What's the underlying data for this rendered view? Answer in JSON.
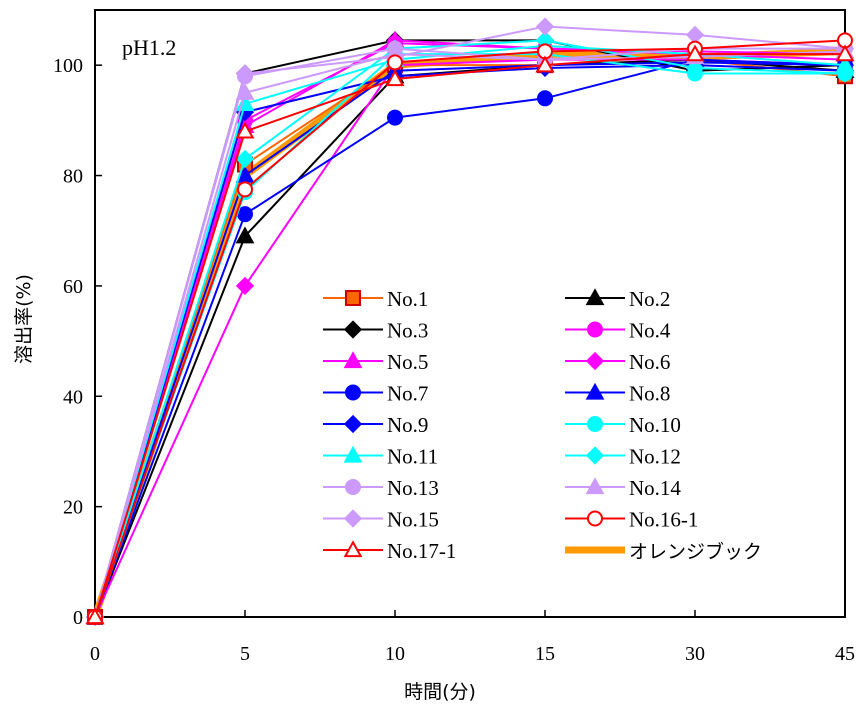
{
  "chart_data": {
    "type": "line",
    "annotation": "pH1.2",
    "xlabel": "時間(分)",
    "ylabel": "溶出率(%)",
    "categories": [
      "0",
      "5",
      "10",
      "15",
      "30",
      "45"
    ],
    "ylim": [
      0,
      110
    ],
    "yticks": [
      "0",
      "20",
      "40",
      "60",
      "80",
      "100"
    ],
    "grid": false,
    "legend_position": "center",
    "series": [
      {
        "name": "No.1",
        "color": "#FF6600",
        "marker": "square",
        "marker_fill": "#FF6600",
        "marker_edge": "#CC0000",
        "values": [
          0,
          82,
          100,
          100,
          101,
          98
        ]
      },
      {
        "name": "No.2",
        "color": "#000000",
        "marker": "triangle",
        "marker_fill": "#000000",
        "marker_edge": "#000000",
        "values": [
          0,
          69,
          98,
          100,
          101,
          99
        ]
      },
      {
        "name": "No.3",
        "color": "#000000",
        "marker": "diamond",
        "marker_fill": "#000000",
        "marker_edge": "#000000",
        "values": [
          0,
          98.5,
          104.5,
          104.5,
          99,
          100
        ]
      },
      {
        "name": "No.4",
        "color": "#FF00FF",
        "marker": "circle",
        "marker_fill": "#FF00FF",
        "marker_edge": "#FF00FF",
        "values": [
          0,
          90,
          104,
          103,
          102,
          101
        ]
      },
      {
        "name": "No.5",
        "color": "#FF00FF",
        "marker": "triangle",
        "marker_fill": "#FF00FF",
        "marker_edge": "#FF00FF",
        "values": [
          0,
          89,
          104.5,
          103,
          102.5,
          102
        ]
      },
      {
        "name": "No.6",
        "color": "#FF00FF",
        "marker": "diamond",
        "marker_fill": "#FF00FF",
        "marker_edge": "#FF00FF",
        "values": [
          0,
          60,
          100,
          101,
          101,
          100
        ]
      },
      {
        "name": "No.7",
        "color": "#0000FF",
        "marker": "circle",
        "marker_fill": "#0000FF",
        "marker_edge": "#0000FF",
        "values": [
          0,
          73,
          90.5,
          94,
          101,
          100
        ]
      },
      {
        "name": "No.8",
        "color": "#0000FF",
        "marker": "triangle",
        "marker_fill": "#0000FF",
        "marker_edge": "#0000FF",
        "values": [
          0,
          80,
          99,
          100,
          100.5,
          100
        ]
      },
      {
        "name": "No.9",
        "color": "#0000FF",
        "marker": "diamond",
        "marker_fill": "#0000FF",
        "marker_edge": "#0000FF",
        "values": [
          0,
          91.5,
          98,
          99.5,
          100,
          99
        ]
      },
      {
        "name": "No.10",
        "color": "#00FFFF",
        "marker": "circle",
        "marker_fill": "#00FFFF",
        "marker_edge": "#00FFFF",
        "values": [
          0,
          77,
          102,
          102,
          98.5,
          98.5
        ]
      },
      {
        "name": "No.11",
        "color": "#00FFFF",
        "marker": "triangle",
        "marker_fill": "#00FFFF",
        "marker_edge": "#00FFFF",
        "values": [
          0,
          93,
          101,
          103.5,
          102,
          100
        ]
      },
      {
        "name": "No.12",
        "color": "#00FFFF",
        "marker": "diamond",
        "marker_fill": "#00FFFF",
        "marker_edge": "#00FFFF",
        "values": [
          0,
          83,
          103,
          104.5,
          99.5,
          98.5
        ]
      },
      {
        "name": "No.13",
        "color": "#CC99FF",
        "marker": "circle",
        "marker_fill": "#CC99FF",
        "marker_edge": "#CC99FF",
        "values": [
          0,
          98,
          103,
          101,
          103,
          103
        ]
      },
      {
        "name": "No.14",
        "color": "#CC99FF",
        "marker": "triangle",
        "marker_fill": "#CC99FF",
        "marker_edge": "#CC99FF",
        "values": [
          0,
          95,
          102,
          101,
          101.5,
          102.5
        ]
      },
      {
        "name": "No.15",
        "color": "#CC99FF",
        "marker": "diamond",
        "marker_fill": "#CC99FF",
        "marker_edge": "#CC99FF",
        "values": [
          0,
          98.5,
          101.5,
          107,
          105.5,
          103
        ]
      },
      {
        "name": "No.16-1",
        "color": "#FF0000",
        "marker": "circle-open",
        "marker_fill": "#FFFFFF",
        "marker_edge": "#FF0000",
        "values": [
          0,
          77.5,
          100.5,
          102.5,
          103,
          104.5
        ]
      },
      {
        "name": "No.17-1",
        "color": "#FF0000",
        "marker": "triangle-open",
        "marker_fill": "#FFFFFF",
        "marker_edge": "#FF0000",
        "values": [
          0,
          88,
          97.5,
          100,
          102,
          102
        ]
      },
      {
        "name": "オレンジブック",
        "color": "#FF9900",
        "marker": "none",
        "thick": true,
        "values": [
          0,
          80,
          100,
          102,
          101.5,
          102.5
        ]
      }
    ]
  }
}
